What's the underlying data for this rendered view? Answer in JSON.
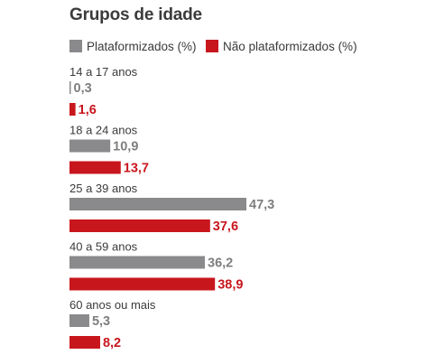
{
  "chart_data": {
    "type": "bar",
    "orientation": "horizontal",
    "title": "Grupos de idade",
    "categories": [
      "14 a 17 anos",
      "18 a 24 anos",
      "25 a 39 anos",
      "40 a 59 anos",
      "60 anos ou mais"
    ],
    "series": [
      {
        "name": "Plataformizados (%)",
        "color": "#8a8a8c",
        "values": [
          0.3,
          10.9,
          47.3,
          36.2,
          5.3
        ],
        "labels": [
          "0,3",
          "10,9",
          "47,3",
          "36,2",
          "5,3"
        ]
      },
      {
        "name": "Não plataformizados (%)",
        "color": "#c8161d",
        "values": [
          1.6,
          13.7,
          37.6,
          38.9,
          8.2
        ],
        "labels": [
          "1,6",
          "13,7",
          "37,6",
          "38,9",
          "8,2"
        ]
      }
    ],
    "legend_position": "top-left",
    "grid": false,
    "xlim": [
      0,
      50
    ]
  }
}
